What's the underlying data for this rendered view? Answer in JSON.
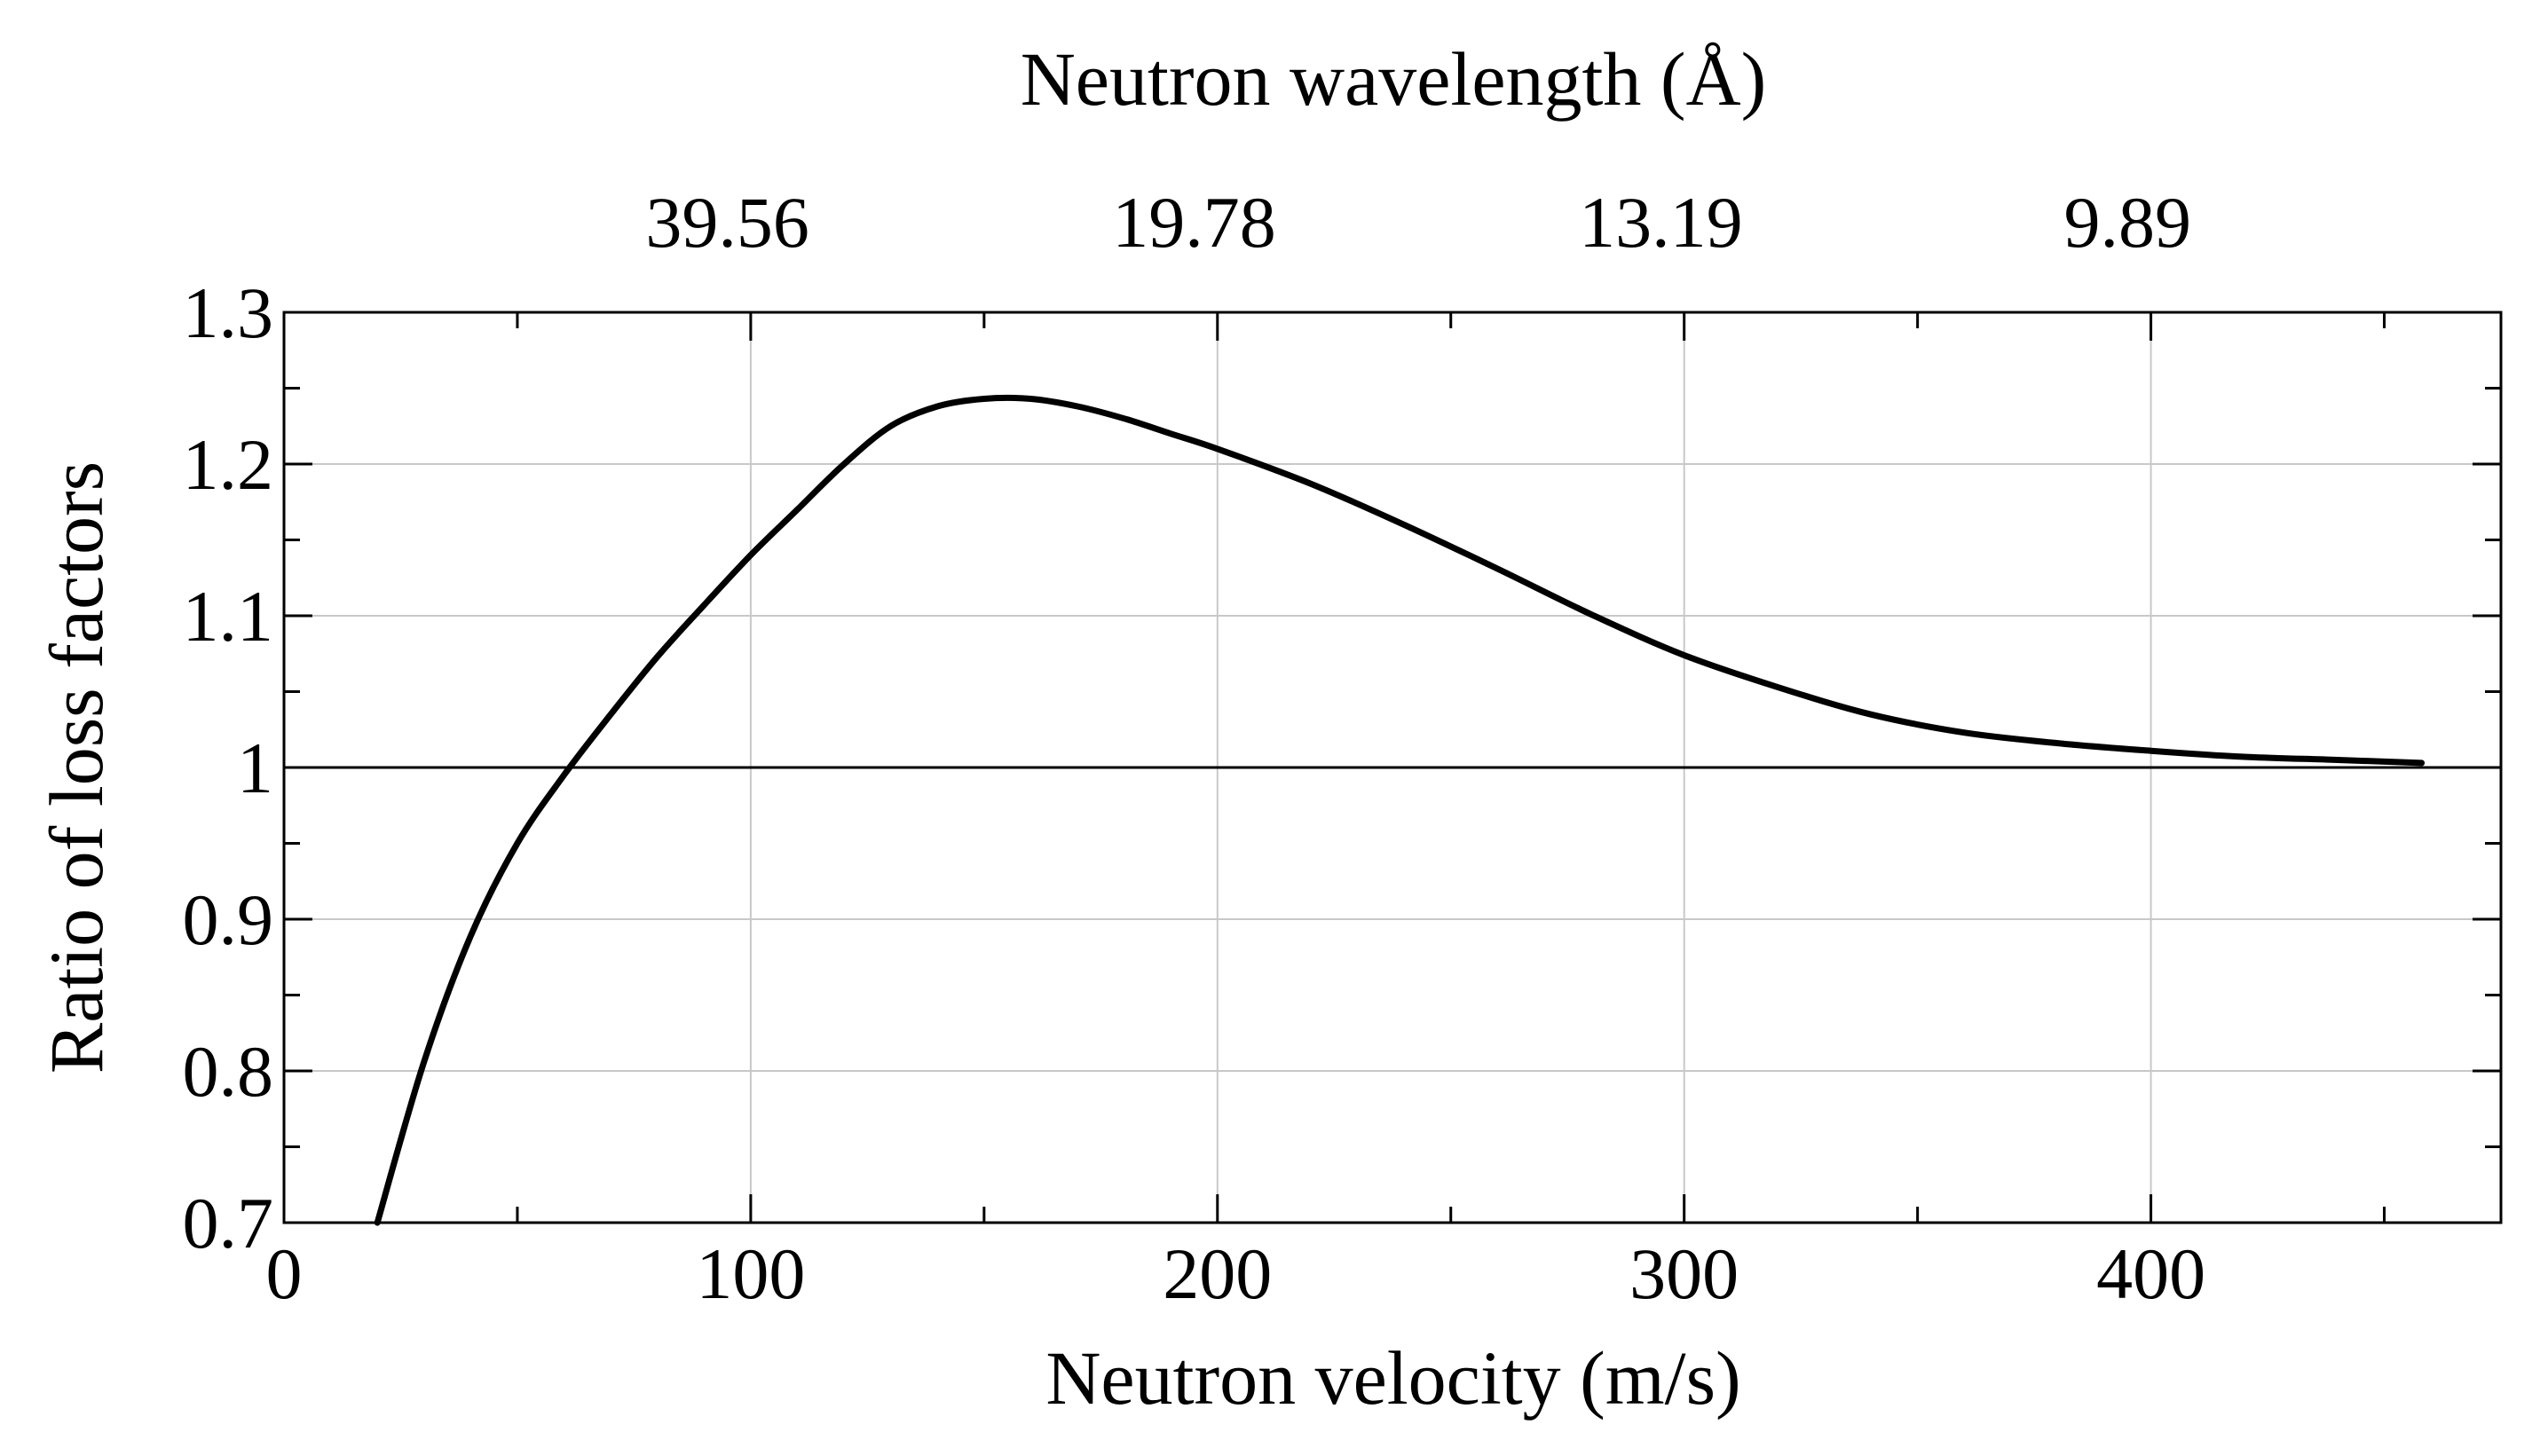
{
  "chart_data": {
    "type": "line",
    "title": "",
    "xlabel": "Neutron velocity (m/s)",
    "ylabel": "Ratio of loss factors",
    "top_xlabel": "Neutron wavelength (Å)",
    "xlim": [
      0,
      475
    ],
    "ylim": [
      0.7,
      1.3
    ],
    "grid": true,
    "legend": "none",
    "x_ticks": [
      {
        "value": 0,
        "label": "0"
      },
      {
        "value": 100,
        "label": "100"
      },
      {
        "value": 200,
        "label": "200"
      },
      {
        "value": 300,
        "label": "300"
      },
      {
        "value": 400,
        "label": "400"
      }
    ],
    "x_minor_ticks": [
      50,
      150,
      250,
      350,
      450
    ],
    "y_ticks": [
      {
        "value": 0.7,
        "label": "0.7"
      },
      {
        "value": 0.8,
        "label": "0.8"
      },
      {
        "value": 0.9,
        "label": "0.9"
      },
      {
        "value": 1.0,
        "label": "1"
      },
      {
        "value": 1.1,
        "label": "1.1"
      },
      {
        "value": 1.2,
        "label": "1.2"
      },
      {
        "value": 1.3,
        "label": "1.3"
      }
    ],
    "y_minor_ticks": [
      0.75,
      0.85,
      0.95,
      1.05,
      1.15,
      1.25
    ],
    "top_ticks": [
      {
        "value": 100,
        "label": "39.56"
      },
      {
        "value": 200,
        "label": "19.78"
      },
      {
        "value": 300,
        "label": "13.19"
      },
      {
        "value": 400,
        "label": "9.89"
      }
    ],
    "reference_line": {
      "y": 1.0
    },
    "series": [
      {
        "name": "Ratio of loss factors",
        "color": "#000000",
        "x": [
          20,
          30,
          40,
          50,
          60,
          70,
          80,
          90,
          100,
          110,
          120,
          130,
          140,
          150,
          160,
          170,
          180,
          190,
          200,
          220,
          240,
          260,
          280,
          300,
          320,
          340,
          360,
          380,
          400,
          420,
          440,
          458
        ],
        "y": [
          0.7,
          0.806,
          0.889,
          0.95,
          0.995,
          1.035,
          1.073,
          1.107,
          1.14,
          1.17,
          1.2,
          1.225,
          1.238,
          1.243,
          1.243,
          1.238,
          1.23,
          1.22,
          1.21,
          1.187,
          1.16,
          1.131,
          1.101,
          1.074,
          1.053,
          1.035,
          1.023,
          1.016,
          1.011,
          1.007,
          1.005,
          1.003
        ]
      }
    ]
  }
}
